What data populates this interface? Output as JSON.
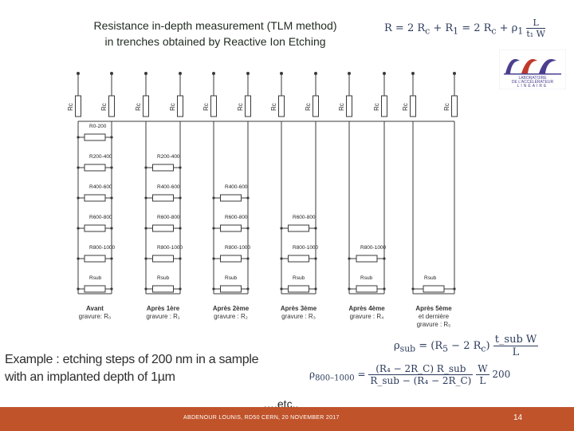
{
  "title": {
    "line1": "Resistance in-depth measurement (TLM method)",
    "line2": "in trenches obtained by Reactive Ion Etching"
  },
  "formula_top": {
    "lhs": "R = 2 R",
    "sub_c": "c",
    "rest": " + R",
    "sub_1": "1",
    "mid": " = 2 R",
    "sub_c2": "c",
    "plus": " + ρ",
    "sub_rho": "1",
    "frac_num": "L",
    "frac_den": "t₁ W"
  },
  "contact_label": "Rc",
  "columns": [
    {
      "resistors": [
        "R0-200",
        "R200-400",
        "R400-600",
        "R600-800",
        "R800-1000",
        "Rsub"
      ],
      "caption": [
        "Avant",
        "gravure: R₀"
      ]
    },
    {
      "resistors": [
        "R200-400",
        "R400-600",
        "R600-800",
        "R800-1000",
        "Rsub"
      ],
      "caption": [
        "Après 1ère",
        "gravure : R₁"
      ]
    },
    {
      "resistors": [
        "R400-600",
        "R600-800",
        "R800-1000",
        "Rsub"
      ],
      "caption": [
        "Après 2ème",
        "gravure : R₂"
      ]
    },
    {
      "resistors": [
        "R600-800",
        "R800-1000",
        "Rsub"
      ],
      "caption": [
        "Après 3ème",
        "gravure : R₃"
      ]
    },
    {
      "resistors": [
        "R800-1000",
        "Rsub"
      ],
      "caption": [
        "Après 4ème",
        "gravure : R₄"
      ]
    },
    {
      "resistors": [
        "Rsub"
      ],
      "caption": [
        "Après 5ème",
        "et dernière",
        "gravure : R₅"
      ]
    }
  ],
  "example": {
    "line1": "Example : etching steps of 200 nm in a sample",
    "line2": "with an implanted depth of 1µm"
  },
  "formula_sub": {
    "lhs": "ρ",
    "lhs_sub": "sub",
    "mid": " = (R",
    "sub5": "5",
    "rest": " − 2 R",
    "subc": "c",
    "close": ")",
    "num": "t_sub W",
    "den": "L"
  },
  "formula_big": {
    "lhs": "ρ",
    "lhs_sub": "800–1000",
    "eq": "=",
    "num1": "(R₄ − 2R_C) R_sub",
    "den1": "R_sub − (R₄ − 2R_C)",
    "num2": "W",
    "den2": "L",
    "tail": "200"
  },
  "etc": "….etc..",
  "footer": {
    "text": "ABDENOUR LOUNIS, RD50 CERN, 20 NOVEMBER 2017",
    "page": "14"
  },
  "logo": {
    "text": [
      "LABORATOIRE",
      "DE L'ACCÉLÉRATEUR",
      "LINÉAIRE"
    ],
    "colors": [
      "#4a3f8f",
      "#c0392b"
    ]
  },
  "colors": {
    "wire": "#3a3a3a",
    "resistor_fill": "#ffffff",
    "footer": "#c0532a"
  }
}
